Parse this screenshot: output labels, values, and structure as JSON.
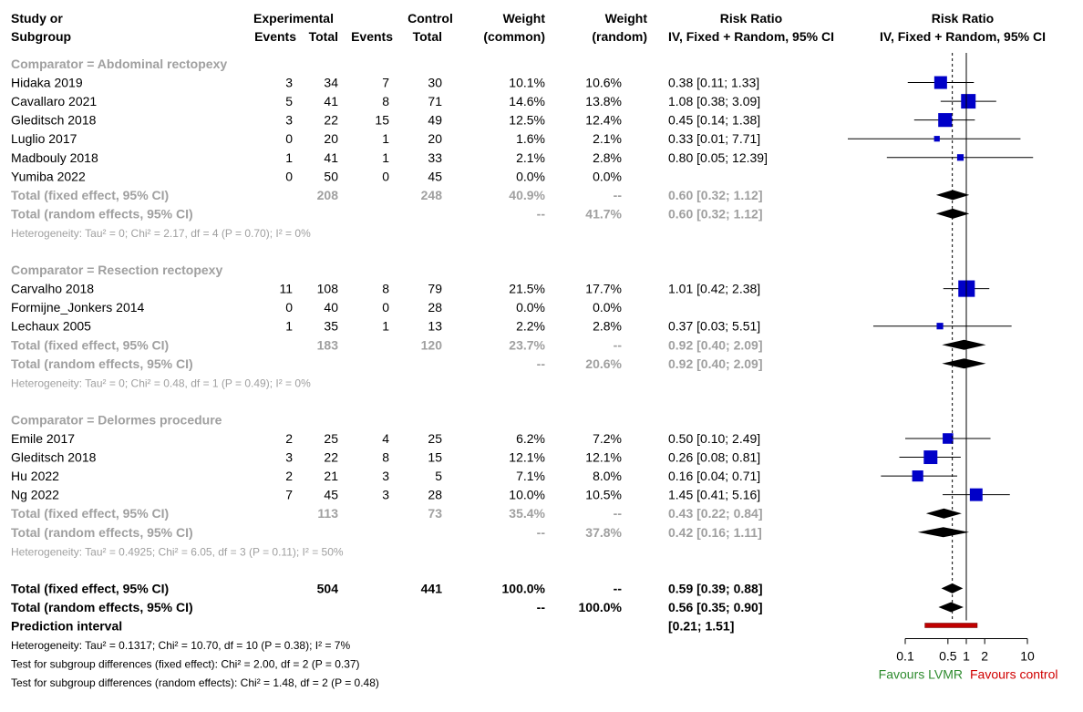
{
  "colors": {
    "black": "#000000",
    "grey": "#a0a0a0",
    "box": "#0000c8",
    "pi": "#c00000",
    "lvmr": "#2e8b2e",
    "control": "#d00000"
  },
  "header": {
    "study_1": "Study or",
    "study_2": "Subgroup",
    "exp_1": "Experimental",
    "exp_events": "Events",
    "exp_total": "Total",
    "ctl_1": "Control",
    "ctl_events": "Events",
    "ctl_total": "Total",
    "wc_1": "Weight",
    "wc_2": "(common)",
    "wr_1": "Weight",
    "wr_2": "(random)",
    "rr_1": "Risk Ratio",
    "rr_2": "IV, Fixed + Random, 95% CI",
    "plot_1": "Risk Ratio",
    "plot_2": "IV, Fixed + Random, 95% CI"
  },
  "chart_data": {
    "type": "forest",
    "x_scale": "log",
    "xlim": [
      0.1,
      10
    ],
    "reference_line": 1,
    "pooled_line": 0.59,
    "ticks": [
      0.1,
      0.5,
      1,
      2,
      10
    ],
    "tick_labels": [
      "0.1",
      "0.5",
      "1",
      "2",
      "10"
    ],
    "favours_left": "Favours LVMR",
    "favours_right": "Favours control",
    "rows": [
      {
        "kind": "group",
        "label": "Comparator = Abdominal  rectopexy"
      },
      {
        "kind": "study",
        "study": "Hidaka 2019",
        "e_ev": "3",
        "e_tot": "34",
        "c_ev": "7",
        "c_tot": "30",
        "w_fixed": "10.1%",
        "w_random": "10.6%",
        "ci_text": "0.38 [0.11;  1.33]",
        "rr": 0.38,
        "lo": 0.11,
        "hi": 1.33,
        "w": 10.6
      },
      {
        "kind": "study",
        "study": "Cavallaro 2021",
        "e_ev": "5",
        "e_tot": "41",
        "c_ev": "8",
        "c_tot": "71",
        "w_fixed": "14.6%",
        "w_random": "13.8%",
        "ci_text": "1.08 [0.38;  3.09]",
        "rr": 1.08,
        "lo": 0.38,
        "hi": 3.09,
        "w": 13.8
      },
      {
        "kind": "study",
        "study": "Gleditsch 2018",
        "e_ev": "3",
        "e_tot": "22",
        "c_ev": "15",
        "c_tot": "49",
        "w_fixed": "12.5%",
        "w_random": "12.4%",
        "ci_text": "0.45 [0.14;  1.38]",
        "rr": 0.45,
        "lo": 0.14,
        "hi": 1.38,
        "w": 12.4
      },
      {
        "kind": "study",
        "study": "Luglio 2017",
        "e_ev": "0",
        "e_tot": "20",
        "c_ev": "1",
        "c_tot": "20",
        "w_fixed": "1.6%",
        "w_random": "2.1%",
        "ci_text": "0.33 [0.01;  7.71]",
        "rr": 0.33,
        "lo": 0.01,
        "hi": 7.71,
        "w": 2.1
      },
      {
        "kind": "study",
        "study": "Madbouly 2018",
        "e_ev": "1",
        "e_tot": "41",
        "c_ev": "1",
        "c_tot": "33",
        "w_fixed": "2.1%",
        "w_random": "2.8%",
        "ci_text": "0.80 [0.05; 12.39]",
        "rr": 0.8,
        "lo": 0.05,
        "hi": 12.39,
        "w": 2.8
      },
      {
        "kind": "study",
        "study": "Yumiba 2022",
        "e_ev": "0",
        "e_tot": "50",
        "c_ev": "0",
        "c_tot": "45",
        "w_fixed": "0.0%",
        "w_random": "0.0%",
        "ci_text": "",
        "rr": null,
        "lo": null,
        "hi": null,
        "w": 0
      },
      {
        "kind": "fixed",
        "study": "Total (fixed effect, 95% CI)",
        "e_tot": "208",
        "c_tot": "248",
        "w_fixed": "40.9%",
        "w_random": "--",
        "ci_text": "0.60 [0.32;  1.12]",
        "rr": 0.6,
        "lo": 0.32,
        "hi": 1.12
      },
      {
        "kind": "random",
        "study": "Total (random effects, 95% CI)",
        "w_fixed": "--",
        "w_random": "41.7%",
        "ci_text": "0.60 [0.32;  1.12]",
        "rr": 0.6,
        "lo": 0.32,
        "hi": 1.12
      },
      {
        "kind": "het",
        "label": "Heterogeneity: Tau² = 0; Chi² = 2.17, df = 4 (P = 0.70); I² = 0%"
      },
      {
        "kind": "blank"
      },
      {
        "kind": "group",
        "label": "Comparator = Resection  rectopexy"
      },
      {
        "kind": "study",
        "study": "Carvalho 2018",
        "e_ev": "11",
        "e_tot": "108",
        "c_ev": "8",
        "c_tot": "79",
        "w_fixed": "21.5%",
        "w_random": "17.7%",
        "ci_text": "1.01 [0.42;  2.38]",
        "rr": 1.01,
        "lo": 0.42,
        "hi": 2.38,
        "w": 17.7
      },
      {
        "kind": "study",
        "study": "Formijne_Jonkers 2014",
        "e_ev": "0",
        "e_tot": "40",
        "c_ev": "0",
        "c_tot": "28",
        "w_fixed": "0.0%",
        "w_random": "0.0%",
        "ci_text": "",
        "rr": null,
        "lo": null,
        "hi": null,
        "w": 0
      },
      {
        "kind": "study",
        "study": "Lechaux 2005",
        "e_ev": "1",
        "e_tot": "35",
        "c_ev": "1",
        "c_tot": "13",
        "w_fixed": "2.2%",
        "w_random": "2.8%",
        "ci_text": "0.37 [0.03;  5.51]",
        "rr": 0.37,
        "lo": 0.03,
        "hi": 5.51,
        "w": 2.8
      },
      {
        "kind": "fixed",
        "study": "Total (fixed effect, 95% CI)",
        "e_tot": "183",
        "c_tot": "120",
        "w_fixed": "23.7%",
        "w_random": "--",
        "ci_text": "0.92 [0.40;  2.09]",
        "rr": 0.92,
        "lo": 0.4,
        "hi": 2.09
      },
      {
        "kind": "random",
        "study": "Total (random effects, 95% CI)",
        "w_fixed": "--",
        "w_random": "20.6%",
        "ci_text": "0.92 [0.40;  2.09]",
        "rr": 0.92,
        "lo": 0.4,
        "hi": 2.09
      },
      {
        "kind": "het",
        "label": "Heterogeneity: Tau² = 0; Chi² = 0.48, df = 1 (P = 0.49); I² = 0%"
      },
      {
        "kind": "blank"
      },
      {
        "kind": "group",
        "label": "Comparator = Delormes  procedure"
      },
      {
        "kind": "study",
        "study": "Emile 2017",
        "e_ev": "2",
        "e_tot": "25",
        "c_ev": "4",
        "c_tot": "25",
        "w_fixed": "6.2%",
        "w_random": "7.2%",
        "ci_text": "0.50 [0.10;  2.49]",
        "rr": 0.5,
        "lo": 0.1,
        "hi": 2.49,
        "w": 7.2
      },
      {
        "kind": "study",
        "study": "Gleditsch 2018",
        "e_ev": "3",
        "e_tot": "22",
        "c_ev": "8",
        "c_tot": "15",
        "w_fixed": "12.1%",
        "w_random": "12.1%",
        "ci_text": "0.26 [0.08;  0.81]",
        "rr": 0.26,
        "lo": 0.08,
        "hi": 0.81,
        "w": 12.1
      },
      {
        "kind": "study",
        "study": "Hu 2022",
        "e_ev": "2",
        "e_tot": "21",
        "c_ev": "3",
        "c_tot": "5",
        "w_fixed": "7.1%",
        "w_random": "8.0%",
        "ci_text": "0.16 [0.04;  0.71]",
        "rr": 0.16,
        "lo": 0.04,
        "hi": 0.71,
        "w": 8.0
      },
      {
        "kind": "study",
        "study": "Ng 2022",
        "e_ev": "7",
        "e_tot": "45",
        "c_ev": "3",
        "c_tot": "28",
        "w_fixed": "10.0%",
        "w_random": "10.5%",
        "ci_text": "1.45 [0.41;  5.16]",
        "rr": 1.45,
        "lo": 0.41,
        "hi": 5.16,
        "w": 10.5
      },
      {
        "kind": "fixed",
        "study": "Total (fixed effect, 95% CI)",
        "e_tot": "113",
        "c_tot": "73",
        "w_fixed": "35.4%",
        "w_random": "--",
        "ci_text": "0.43 [0.22;  0.84]",
        "rr": 0.43,
        "lo": 0.22,
        "hi": 0.84
      },
      {
        "kind": "random",
        "study": "Total (random effects, 95% CI)",
        "w_fixed": "--",
        "w_random": "37.8%",
        "ci_text": "0.42 [0.16;  1.11]",
        "rr": 0.42,
        "lo": 0.16,
        "hi": 1.11
      },
      {
        "kind": "het",
        "label": "Heterogeneity: Tau² = 0.4925; Chi² = 6.05, df = 3 (P = 0.11); I² = 50%"
      },
      {
        "kind": "blank"
      },
      {
        "kind": "ofixed",
        "study": "Total (fixed effect, 95% CI)",
        "e_tot": "504",
        "c_tot": "441",
        "w_fixed": "100.0%",
        "w_random": "--",
        "ci_text": "0.59 [0.39;  0.88]",
        "rr": 0.59,
        "lo": 0.39,
        "hi": 0.88
      },
      {
        "kind": "orandom",
        "study": "Total (random effects, 95% CI)",
        "w_fixed": "--",
        "w_random": "100.0%",
        "ci_text": "0.56 [0.35;  0.90]",
        "rr": 0.56,
        "lo": 0.35,
        "hi": 0.9
      },
      {
        "kind": "pi",
        "study": "Prediction interval",
        "ci_text": "[0.21;  1.51]",
        "lo": 0.21,
        "hi": 1.51
      },
      {
        "kind": "note",
        "label": "Heterogeneity: Tau² = 0.1317; Chi² = 10.70, df = 10 (P = 0.38); I² = 7%"
      },
      {
        "kind": "note",
        "label": "Test for subgroup differences (fixed effect): Chi² = 2.00, df = 2 (P = 0.37)"
      },
      {
        "kind": "note",
        "label": "Test for subgroup differences (random effects): Chi² = 1.48, df = 2 (P = 0.48)"
      }
    ]
  }
}
